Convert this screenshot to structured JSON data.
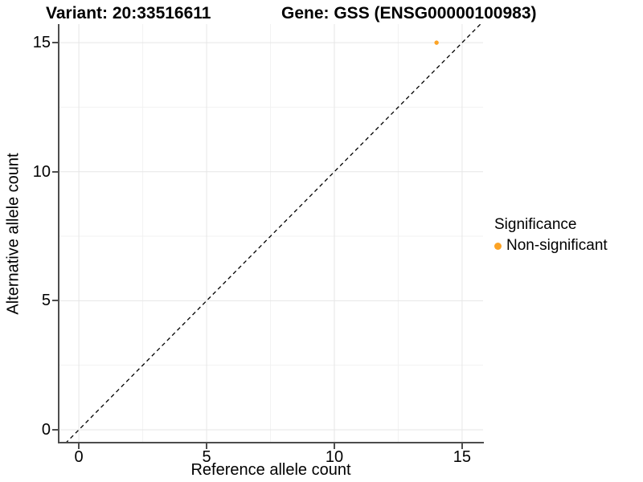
{
  "chart_data": {
    "type": "scatter",
    "title_left": "Variant: 20:33516611",
    "title_right": "Gene: GSS (ENSG00000100983)",
    "xlabel": "Reference allele count",
    "ylabel": "Alternative allele count",
    "x_ticks": [
      0,
      5,
      10,
      15
    ],
    "y_ticks": [
      0,
      5,
      10,
      15
    ],
    "minor_x_ticks": [
      2.5,
      7.5,
      12.5
    ],
    "minor_y_ticks": [
      2.5,
      7.5,
      12.5
    ],
    "data_range_x": [
      0,
      15
    ],
    "data_range_y": [
      0,
      15
    ],
    "xlim": [
      -0.79,
      15.82
    ],
    "ylim": [
      -0.53,
      15.72
    ],
    "grid": true,
    "points": [
      {
        "x": 14,
        "y": 15,
        "series": "Non-significant"
      }
    ],
    "reference_line": {
      "kind": "identity",
      "style": "dashed",
      "color": "#000000"
    },
    "legend": {
      "title": "Significance",
      "position": "right",
      "entries": [
        {
          "label": "Non-significant",
          "color": "#FCA325"
        }
      ]
    },
    "colors": {
      "non_significant": "#FCA325",
      "axis_line": "#4d4d4d",
      "grid_major": "#e6e6e6",
      "grid_minor": "#f2f2f2",
      "background": "#ffffff"
    }
  }
}
